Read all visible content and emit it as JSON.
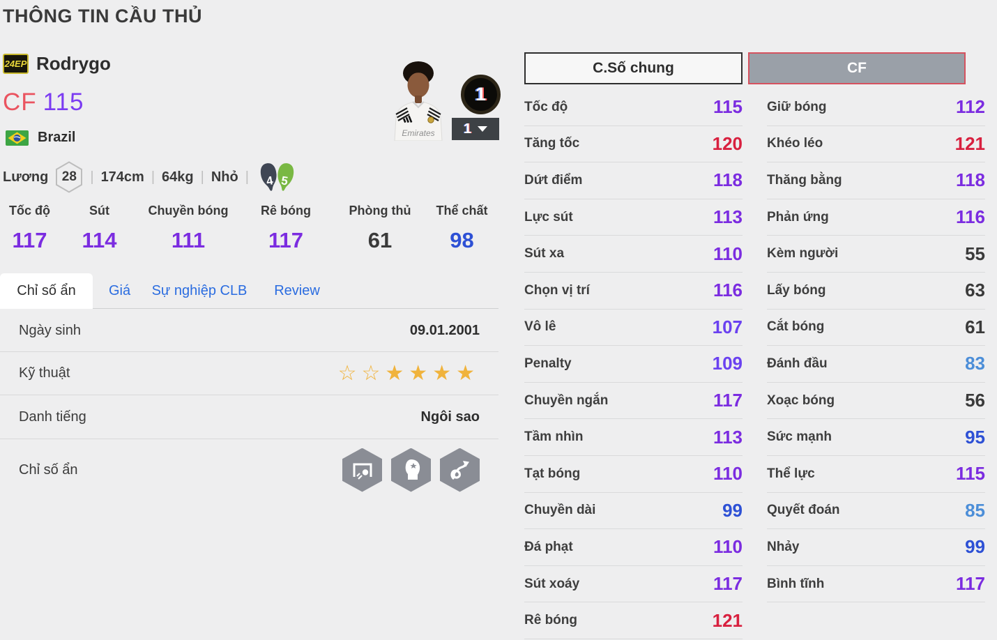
{
  "page": {
    "title": "THÔNG TIN CẦU THỦ"
  },
  "player": {
    "season_badge": "24EP",
    "name": "Rodrygo",
    "position": "CF",
    "ovr": "115",
    "nation": "Brazil",
    "salary_label": "Lương",
    "salary_value": "28",
    "height": "174cm",
    "weight": "64kg",
    "body_type": "Nhỏ",
    "separator": "|",
    "weak_foot_rating": "4",
    "strong_foot_rating": "5",
    "upgrade_badge": "1",
    "upgrade_dropdown_value": "1"
  },
  "summary_stats": [
    {
      "label": "Tốc độ",
      "value": "117"
    },
    {
      "label": "Sút",
      "value": "114"
    },
    {
      "label": "Chuyền bóng",
      "value": "111"
    },
    {
      "label": "Rê bóng",
      "value": "117"
    },
    {
      "label": "Phòng thủ",
      "value": "61"
    },
    {
      "label": "Thể chất",
      "value": "98"
    }
  ],
  "tabs": [
    {
      "label": "Chỉ số ẩn",
      "active": true
    },
    {
      "label": "Giá",
      "active": false
    },
    {
      "label": "Sự nghiệp CLB",
      "active": false
    },
    {
      "label": "Review",
      "active": false
    }
  ],
  "info_rows": [
    {
      "type": "text",
      "label": "Ngày sinh",
      "value": "09.01.2001"
    },
    {
      "type": "stars",
      "label": "Kỹ thuật",
      "stars_empty": 2,
      "stars_filled": 4
    },
    {
      "type": "text",
      "label": "Danh tiếng",
      "value": "Ngôi sao"
    },
    {
      "type": "icons",
      "label": "Chỉ số ẩn",
      "icons": [
        "goal-and-ball-icon",
        "head-profile-icon",
        "dribble-path-icon"
      ]
    }
  ],
  "detail": {
    "position_buttons": [
      {
        "label": "C.Số chung",
        "active": false
      },
      {
        "label": "CF",
        "active": true
      }
    ],
    "left_column": [
      {
        "label": "Tốc độ",
        "value": "115"
      },
      {
        "label": "Tăng tốc",
        "value": "120"
      },
      {
        "label": "Dứt điểm",
        "value": "118"
      },
      {
        "label": "Lực sút",
        "value": "113"
      },
      {
        "label": "Sút xa",
        "value": "110"
      },
      {
        "label": "Chọn vị trí",
        "value": "116"
      },
      {
        "label": "Vô lê",
        "value": "107"
      },
      {
        "label": "Penalty",
        "value": "109"
      },
      {
        "label": "Chuyền ngắn",
        "value": "117"
      },
      {
        "label": "Tầm nhìn",
        "value": "113"
      },
      {
        "label": "Tạt bóng",
        "value": "110"
      },
      {
        "label": "Chuyền dài",
        "value": "99"
      },
      {
        "label": "Đá phạt",
        "value": "110"
      },
      {
        "label": "Sút xoáy",
        "value": "117"
      },
      {
        "label": "Rê bóng",
        "value": "121"
      }
    ],
    "right_column": [
      {
        "label": "Giữ bóng",
        "value": "112"
      },
      {
        "label": "Khéo léo",
        "value": "121"
      },
      {
        "label": "Thăng bằng",
        "value": "118"
      },
      {
        "label": "Phản ứng",
        "value": "116"
      },
      {
        "label": "Kèm người",
        "value": "55"
      },
      {
        "label": "Lấy bóng",
        "value": "63"
      },
      {
        "label": "Cắt bóng",
        "value": "61"
      },
      {
        "label": "Đánh đầu",
        "value": "83"
      },
      {
        "label": "Xoạc bóng",
        "value": "56"
      },
      {
        "label": "Sức mạnh",
        "value": "95"
      },
      {
        "label": "Thể lực",
        "value": "115"
      },
      {
        "label": "Quyết đoán",
        "value": "85"
      },
      {
        "label": "Nhảy",
        "value": "99"
      },
      {
        "label": "Bình tĩnh",
        "value": "117"
      }
    ]
  },
  "colors": {
    "tier_120_plus": "#d8203f",
    "tier_110s": "#7b2ce0",
    "tier_100s": "#6a41f0",
    "tier_90s": "#2d50d5",
    "tier_80s": "#4c8ed8",
    "tier_default": "#3a3a3a",
    "position_red": "#ea5460",
    "ovr_purple": "#7b3bf2",
    "tab_blue": "#2a6ce0",
    "star_gold": "#f0b33c"
  }
}
